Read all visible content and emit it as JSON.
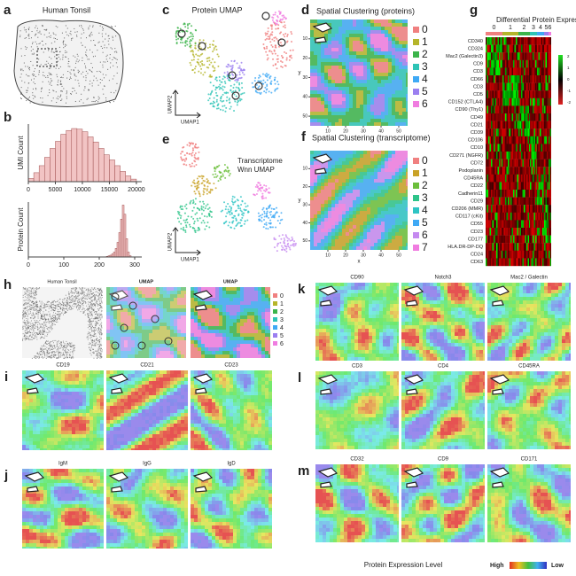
{
  "a": {
    "label": "a",
    "title": "Human Tonsil"
  },
  "b": {
    "label": "b",
    "chart_data": [
      {
        "type": "histogram",
        "ylabel": "UMI Count",
        "bins": [
          0,
          1000,
          2000,
          3000,
          4000,
          5000,
          6000,
          7000,
          8000,
          9000,
          10000,
          11000,
          12000,
          13000,
          14000,
          15000,
          16000,
          17000,
          18000,
          19000,
          20000
        ],
        "counts": [
          5,
          14,
          25,
          38,
          52,
          63,
          74,
          80,
          83,
          82,
          78,
          70,
          62,
          52,
          42,
          34,
          25,
          16,
          9,
          4
        ],
        "xlim": [
          0,
          21000
        ],
        "ylim": [
          0,
          90
        ],
        "xticks": [
          0,
          5000,
          10000,
          15000,
          20000
        ],
        "color": "#f2c4c4"
      },
      {
        "type": "histogram",
        "ylabel": "Protein Count",
        "bins": [
          220,
          225,
          230,
          235,
          240,
          245,
          250,
          255,
          260,
          265,
          270,
          275,
          280,
          285,
          290
        ],
        "counts": [
          1,
          2,
          3,
          5,
          8,
          14,
          24,
          40,
          62,
          85,
          70,
          30,
          8,
          2
        ],
        "xlim": [
          0,
          320
        ],
        "ylim": [
          0,
          90
        ],
        "xticks": [
          0,
          100,
          200,
          300
        ],
        "color": "#f2c4c4"
      }
    ]
  },
  "c": {
    "label": "c",
    "title": "Protein UMAP",
    "xlabel": "UMAP1",
    "ylabel": "UMAP2"
  },
  "d": {
    "label": "d",
    "title": "Spatial Clustering (proteins)",
    "ylabel": "y",
    "xlim": [
      0,
      55
    ],
    "ylim": [
      0,
      55
    ],
    "xticks": [
      10,
      20,
      30,
      40,
      50
    ],
    "yticks": [
      10,
      20,
      30,
      40,
      50
    ],
    "legend": {
      "labels": [
        "0",
        "1",
        "2",
        "3",
        "4",
        "5",
        "6"
      ],
      "colors": [
        "#f08080",
        "#b5b52a",
        "#3cb44b",
        "#2ec4b6",
        "#3fa9f5",
        "#9b7ff0",
        "#f07ce0"
      ]
    }
  },
  "e": {
    "label": "e",
    "title": [
      "Transcriptome",
      "Wnn UMAP"
    ],
    "xlabel": "UMAP1",
    "ylabel": "UMAP2"
  },
  "f": {
    "label": "f",
    "title": "Spatial Clustering (transcriptome)",
    "xlabel": "x",
    "ylabel": "y",
    "xlim": [
      0,
      55
    ],
    "ylim": [
      0,
      55
    ],
    "xticks": [
      10,
      20,
      30,
      40,
      50
    ],
    "yticks": [
      10,
      20,
      30,
      40,
      50
    ],
    "legend": {
      "labels": [
        "0",
        "1",
        "2",
        "3",
        "4",
        "5",
        "6",
        "7"
      ],
      "colors": [
        "#f08080",
        "#c9a227",
        "#6cbf3b",
        "#2ec48a",
        "#2ec4c4",
        "#3fa9f5",
        "#c58af0",
        "#f07ce0"
      ]
    }
  },
  "g": {
    "label": "g",
    "title": "Differential Protein Expression",
    "clusters": [
      "0",
      "1",
      "2",
      "3",
      "4",
      "5",
      "6"
    ],
    "cluster_colors": [
      "#f08080",
      "#b5b52a",
      "#3cb44b",
      "#2ec4b6",
      "#3fa9f5",
      "#9b7ff0",
      "#f07ce0"
    ],
    "rows": [
      "CD340",
      "CD324",
      "Mac2 (Galectin3)",
      "CD9",
      "CD3",
      "CD66",
      "CD3",
      "CD5",
      "CD152 (CTLA4)",
      "CD90 (Thy1)",
      "CD49",
      "CD21",
      "CD39",
      "CD106",
      "CD10",
      "CD271 (NGFR)",
      "CD72",
      "Podoplanin",
      "CD45RA",
      "CD22",
      "Cadherin11",
      "CD29",
      "CD206 (MMR)",
      "CD117 (cKit)",
      "CD55",
      "CD23",
      "CD177",
      "HLA.DR-DP-DQ",
      "CD24",
      "CD63"
    ],
    "colorbar_ticks": [
      2,
      1,
      0,
      -1,
      -2
    ]
  },
  "h": {
    "label": "h",
    "titles": [
      "Human Tonsil",
      "UMAP",
      "UMAP"
    ],
    "legend": {
      "labels": [
        "0",
        "1",
        "2",
        "3",
        "4",
        "5",
        "6"
      ],
      "colors": [
        "#f08080",
        "#b5b52a",
        "#3cb44b",
        "#2ec4b6",
        "#3fa9f5",
        "#9b7ff0",
        "#f07ce0"
      ]
    }
  },
  "i": {
    "label": "i",
    "titles": [
      "CD19",
      "CD21",
      "CD23"
    ]
  },
  "j": {
    "label": "j",
    "titles": [
      "IgM",
      "IgG",
      "IgD"
    ]
  },
  "k": {
    "label": "k",
    "titles": [
      "CD90",
      "Notch3",
      "Mac2 / Galectin"
    ]
  },
  "l": {
    "label": "l",
    "titles": [
      "CD3",
      "CD4",
      "CD45RA"
    ]
  },
  "m": {
    "label": "m",
    "titles": [
      "CD32",
      "CD9",
      "CD171"
    ]
  },
  "footer": {
    "title": "Protein Expression Level",
    "high": "High",
    "low": "Low"
  }
}
